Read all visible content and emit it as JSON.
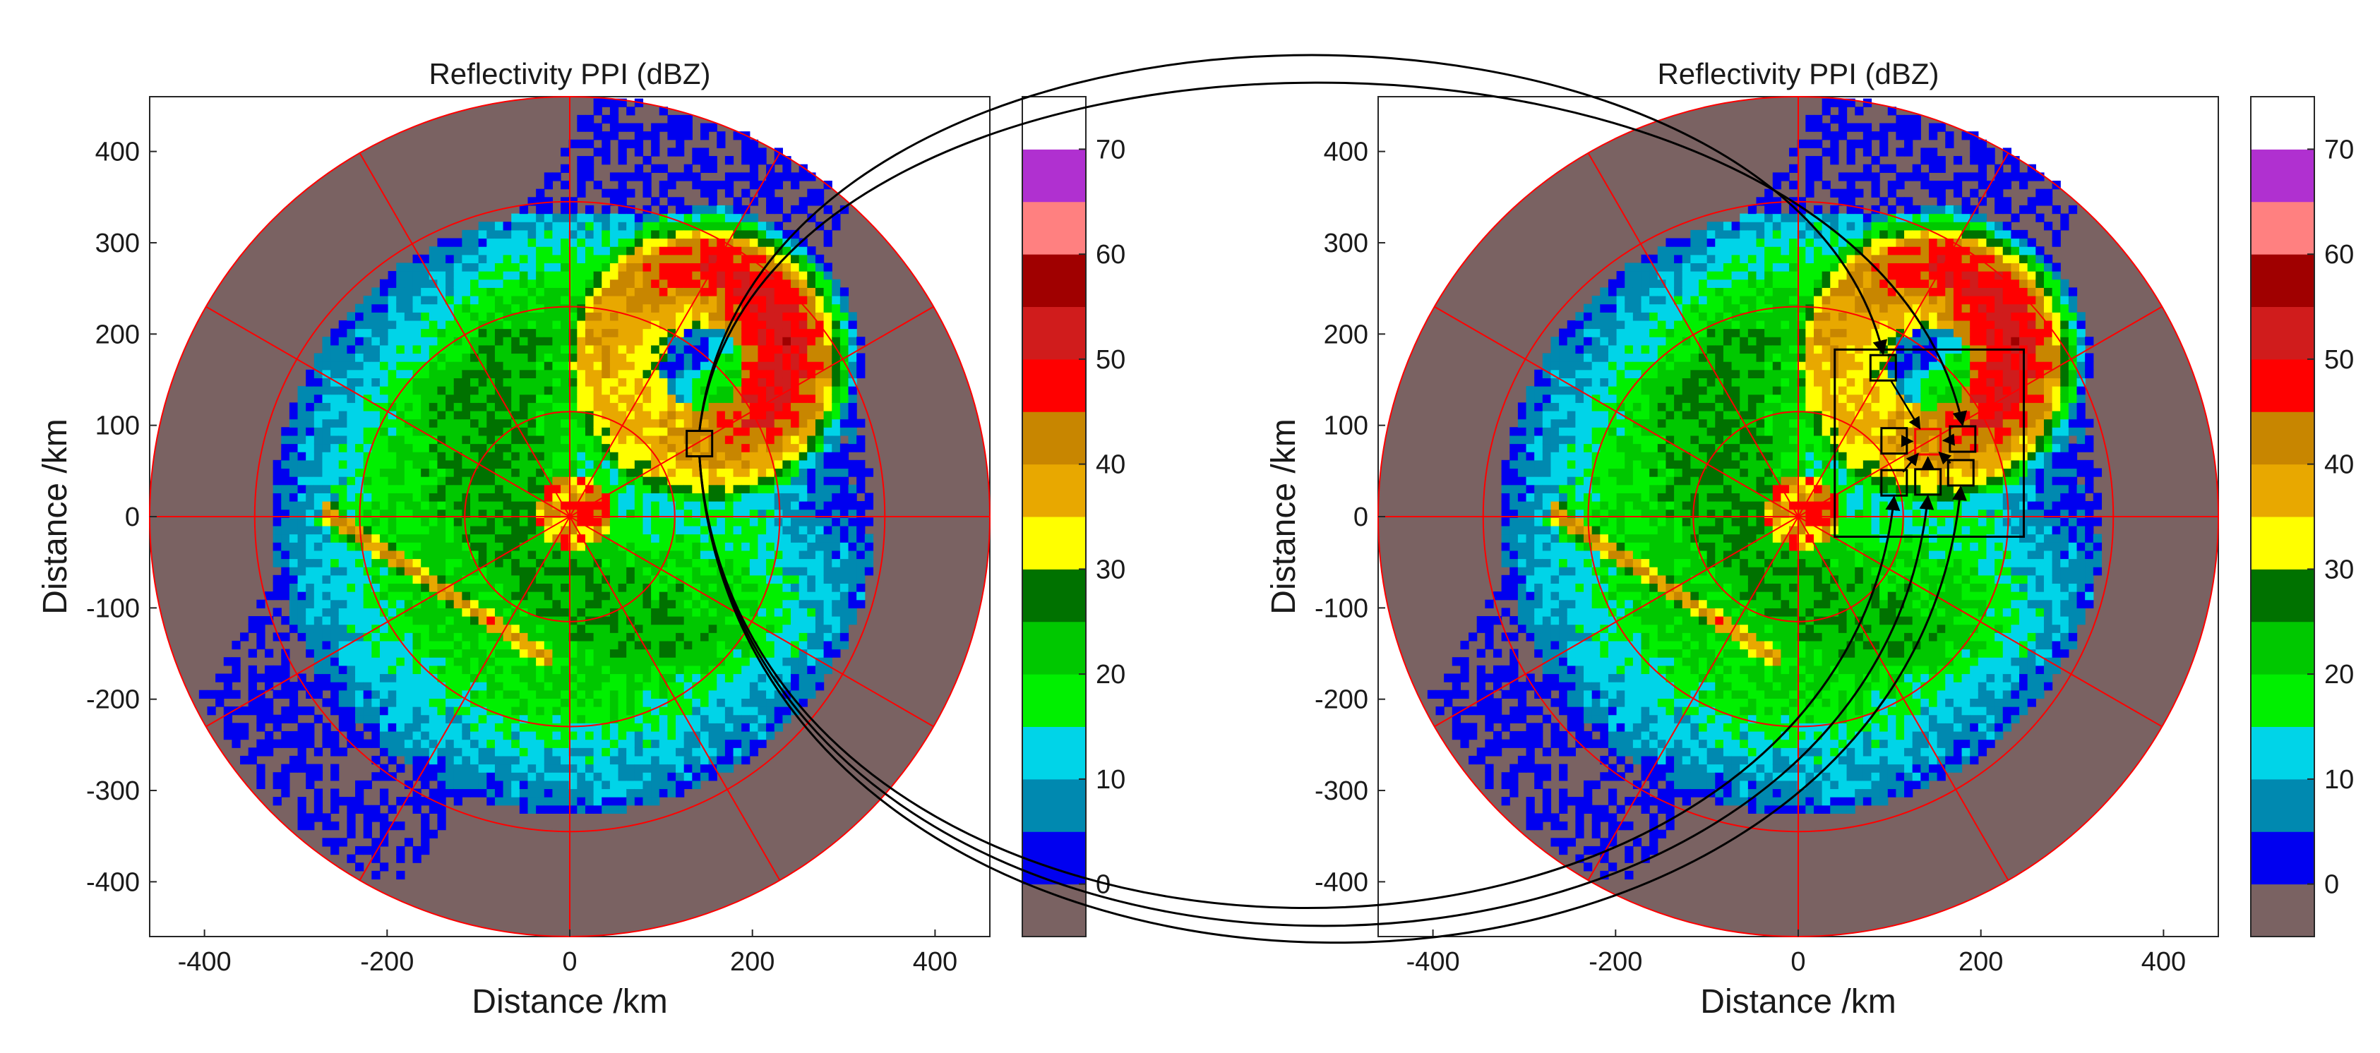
{
  "chart_data": [
    {
      "type": "heatmap",
      "title": "Reflectivity PPI (dBZ)",
      "xlabel": "Distance /km",
      "ylabel": "Distance /km",
      "xlim": [
        -460,
        460
      ],
      "ylim": [
        -460,
        460
      ],
      "xticks": [
        "-400",
        "-200",
        "0",
        "200",
        "400"
      ],
      "yticks": [
        "400",
        "300",
        "200",
        "100",
        "0",
        "-100",
        "-200",
        "-300",
        "-400"
      ],
      "radar_range_km": 460,
      "range_rings_km": [
        115,
        230,
        345,
        460
      ],
      "azimuth_spokes_deg": 30,
      "highlight_box_km": {
        "x": 142,
        "y": 80
      }
    },
    {
      "type": "heatmap",
      "title": "Reflectivity PPI (dBZ)",
      "xlabel": "Distance /km",
      "ylabel": "Distance /km",
      "xlim": [
        -460,
        460
      ],
      "ylim": [
        -460,
        460
      ],
      "xticks": [
        "-400",
        "-200",
        "0",
        "200",
        "400"
      ],
      "yticks": [
        "400",
        "300",
        "200",
        "100",
        "0",
        "-100",
        "-200",
        "-300",
        "-400"
      ],
      "radar_range_km": 460,
      "range_rings_km": [
        115,
        230,
        345,
        460
      ],
      "azimuth_spokes_deg": 30,
      "region_box_km": {
        "x_min": 40,
        "x_max": 247,
        "y_min": -22,
        "y_max": 183
      },
      "highlight_boxes_km": [
        {
          "x": 93,
          "y": 163
        },
        {
          "x": 105,
          "y": 83
        },
        {
          "x": 180,
          "y": 85
        },
        {
          "x": 105,
          "y": 37
        },
        {
          "x": 142,
          "y": 38
        },
        {
          "x": 178,
          "y": 48
        }
      ],
      "center_box_km": {
        "x": 142,
        "y": 82
      }
    }
  ],
  "colorbar": {
    "ticks": [
      "70",
      "60",
      "50",
      "40",
      "30",
      "20",
      "10",
      "0"
    ],
    "range": [
      -5,
      75
    ],
    "bins": [
      {
        "from": -5,
        "to": 0,
        "color": "#7a6262"
      },
      {
        "from": 0,
        "to": 5,
        "color": "#0000f0"
      },
      {
        "from": 5,
        "to": 10,
        "color": "#0089b0"
      },
      {
        "from": 10,
        "to": 15,
        "color": "#00d4e8"
      },
      {
        "from": 15,
        "to": 20,
        "color": "#00f000"
      },
      {
        "from": 20,
        "to": 25,
        "color": "#00c800"
      },
      {
        "from": 25,
        "to": 30,
        "color": "#007200"
      },
      {
        "from": 30,
        "to": 35,
        "color": "#ffff00"
      },
      {
        "from": 35,
        "to": 40,
        "color": "#e8a800"
      },
      {
        "from": 40,
        "to": 45,
        "color": "#c88600"
      },
      {
        "from": 45,
        "to": 50,
        "color": "#ff0000"
      },
      {
        "from": 50,
        "to": 55,
        "color": "#d01c1c"
      },
      {
        "from": 55,
        "to": 60,
        "color": "#a00000"
      },
      {
        "from": 60,
        "to": 65,
        "color": "#ff8080"
      },
      {
        "from": 65,
        "to": 70,
        "color": "#b030d0"
      },
      {
        "from": 70,
        "to": 75,
        "color": "#ffffff"
      }
    ]
  },
  "colors": {
    "background_no_echo": "#7a6262",
    "grid_lines": "#ff0000",
    "box_outline": "#000000",
    "center_box_outline": "#ff0000"
  }
}
